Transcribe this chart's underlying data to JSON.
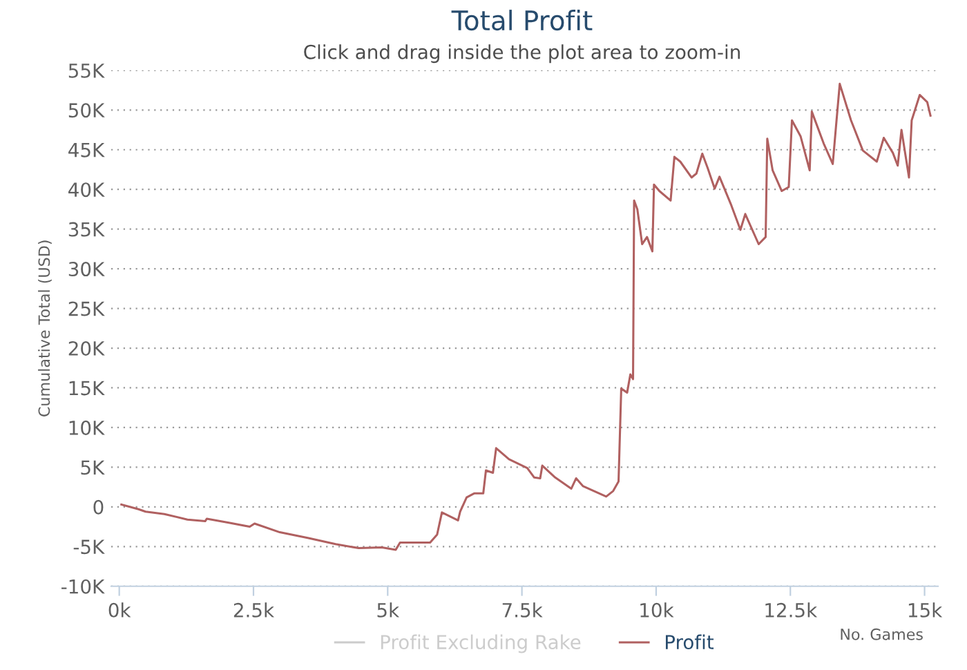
{
  "chart_data": {
    "type": "line",
    "title": "Total Profit",
    "subtitle": "Click and drag inside the plot area to zoom-in",
    "xlabel": "No. Games",
    "ylabel": "Cumulative Total (USD)",
    "xlim": [
      -150,
      15250
    ],
    "xticks": [
      {
        "value": 0,
        "label": "0k"
      },
      {
        "value": 2500,
        "label": "2.5k"
      },
      {
        "value": 5000,
        "label": "5k"
      },
      {
        "value": 7500,
        "label": "7.5k"
      },
      {
        "value": 10000,
        "label": "10k"
      },
      {
        "value": 12500,
        "label": "12.5k"
      },
      {
        "value": 15000,
        "label": "15k"
      }
    ],
    "ylim": [
      -10000,
      55000
    ],
    "yticks": [
      {
        "value": -10000,
        "label": "-10K"
      },
      {
        "value": -5000,
        "label": "-5K"
      },
      0,
      {
        "value": 5000,
        "label": "5K"
      },
      {
        "value": 10000,
        "label": "10K"
      },
      {
        "value": 15000,
        "label": "15K"
      },
      {
        "value": 20000,
        "label": "20K"
      },
      {
        "value": 25000,
        "label": "25K"
      },
      {
        "value": 30000,
        "label": "30K"
      },
      {
        "value": 35000,
        "label": "35K"
      },
      {
        "value": 40000,
        "label": "40K"
      },
      {
        "value": 45000,
        "label": "45K"
      },
      {
        "value": 50000,
        "label": "50K"
      },
      {
        "value": 55000,
        "label": "55K"
      }
    ],
    "grid": "y",
    "legend": "bottom",
    "marker": "none",
    "line_style": "solid",
    "series": [
      {
        "name": "Profit Excluding Rake",
        "color": "#cccccc"
      },
      {
        "name": "Profit",
        "color": "#b06060",
        "x": [
          40,
          360,
          490,
          840,
          1270,
          1600,
          1630,
          2040,
          2430,
          2520,
          2990,
          3510,
          4030,
          4460,
          4890,
          5150,
          5230,
          5660,
          5790,
          5920,
          6010,
          6310,
          6350,
          6470,
          6610,
          6780,
          6830,
          6960,
          7020,
          7260,
          7600,
          7730,
          7840,
          7880,
          8120,
          8420,
          8510,
          8640,
          9070,
          9200,
          9300,
          9350,
          9460,
          9520,
          9570,
          9590,
          9650,
          9740,
          9830,
          9930,
          9960,
          10060,
          10270,
          10340,
          10450,
          10660,
          10750,
          10860,
          10960,
          11090,
          11180,
          11400,
          11570,
          11660,
          11910,
          12040,
          12070,
          12170,
          12340,
          12470,
          12530,
          12690,
          12860,
          12900,
          13120,
          13290,
          13350,
          13420,
          13630,
          13850,
          14110,
          14240,
          14410,
          14500,
          14570,
          14710,
          14760,
          14910,
          15050,
          15110
        ],
        "values": [
          300,
          -300,
          -600,
          -900,
          -1600,
          -1800,
          -1500,
          -2000,
          -2500,
          -2100,
          -3200,
          -3900,
          -4700,
          -5200,
          -5100,
          -5400,
          -4500,
          -4500,
          -4500,
          -3500,
          -700,
          -1700,
          -600,
          1200,
          1700,
          1700,
          4600,
          4300,
          7400,
          6000,
          4900,
          3700,
          3600,
          5200,
          3700,
          2300,
          3600,
          2600,
          1300,
          2000,
          3200,
          14900,
          14400,
          16700,
          16100,
          38600,
          37500,
          33100,
          34000,
          32200,
          40600,
          39800,
          38600,
          44100,
          43500,
          41500,
          42000,
          44500,
          42700,
          40100,
          41600,
          38000,
          34900,
          36900,
          33100,
          34000,
          46400,
          42400,
          39800,
          40300,
          48700,
          46700,
          42400,
          49800,
          45800,
          43200,
          47900,
          53300,
          48700,
          44900,
          43500,
          46500,
          44600,
          43000,
          47500,
          41500,
          48700,
          51900,
          51000,
          49300
        ]
      }
    ]
  }
}
